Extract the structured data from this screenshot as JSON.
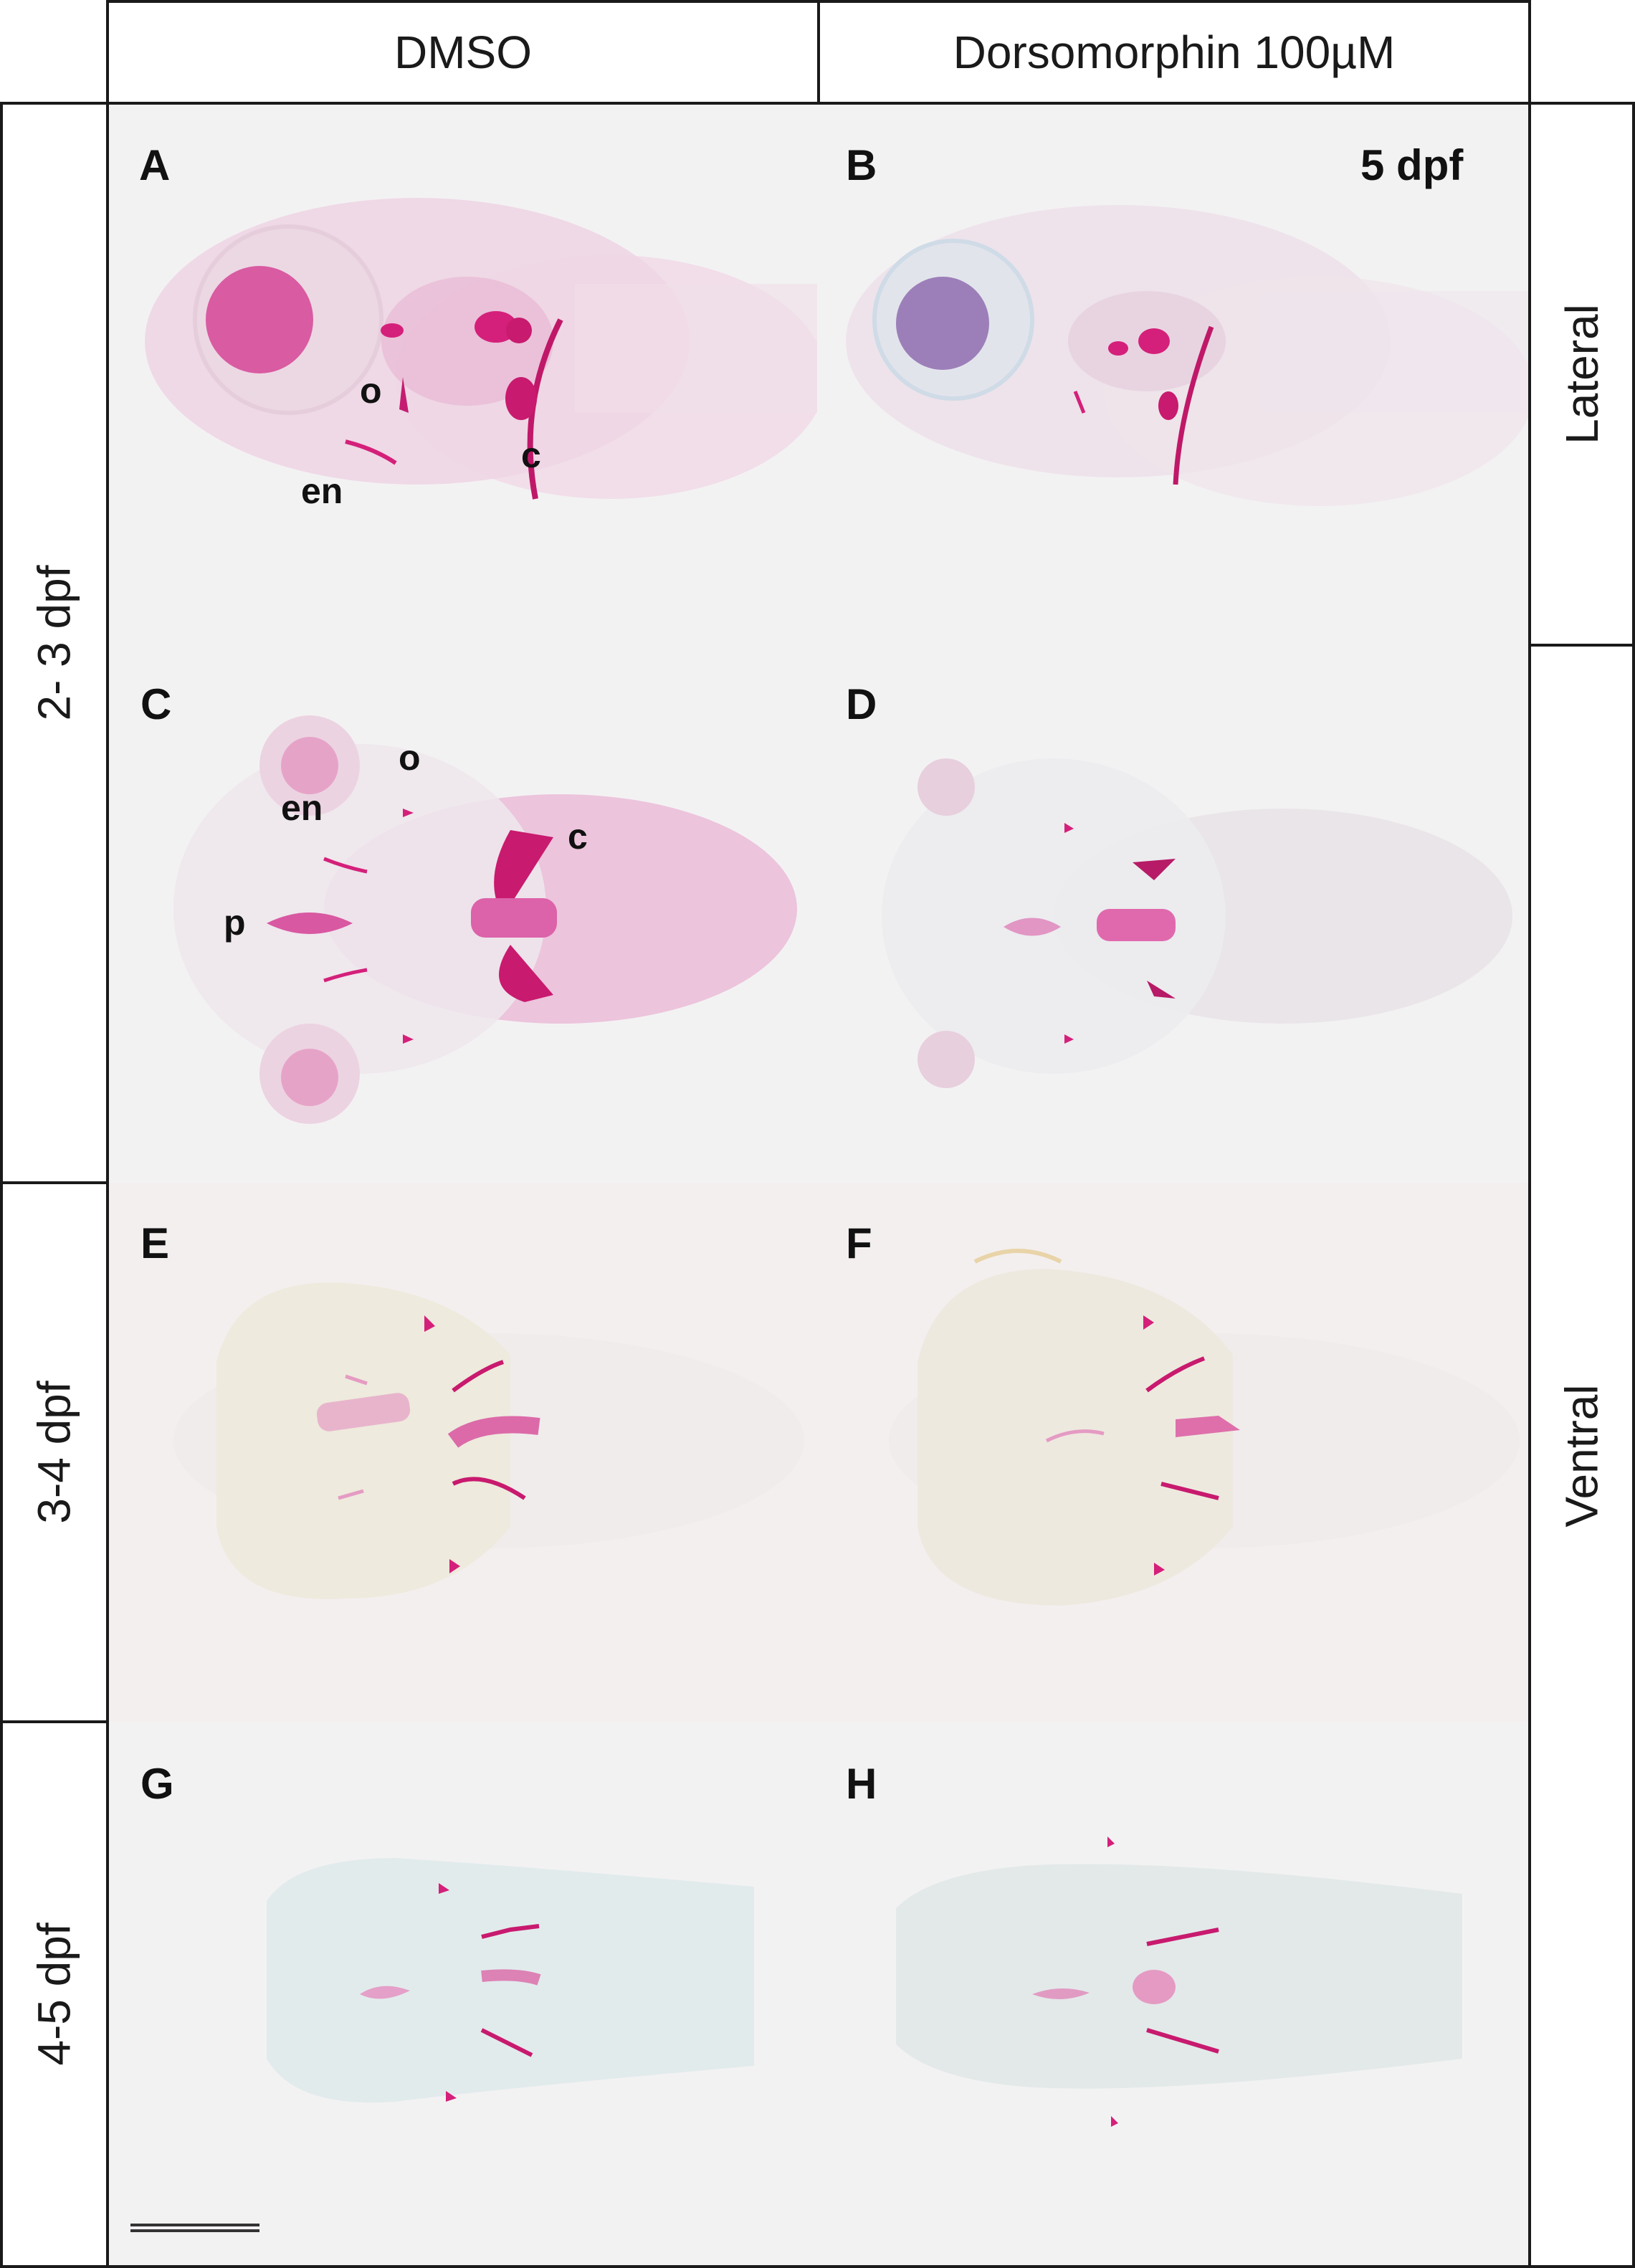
{
  "columns": [
    "DMSO",
    "Dorsomorphin 100µM"
  ],
  "rows": [
    "2- 3 dpf",
    "3-4 dpf",
    "4-5 dpf"
  ],
  "views": [
    "Lateral",
    "Ventral"
  ],
  "stage_label": "5 dpf",
  "panels": {
    "A": {
      "letter": "A"
    },
    "B": {
      "letter": "B"
    },
    "C": {
      "letter": "C"
    },
    "D": {
      "letter": "D"
    },
    "E": {
      "letter": "E"
    },
    "F": {
      "letter": "F"
    },
    "G": {
      "letter": "G"
    },
    "H": {
      "letter": "H"
    }
  },
  "annotations": {
    "A": {
      "o": "o",
      "c": "c",
      "en": "en"
    },
    "C": {
      "o": "o",
      "en": "en",
      "c": "c",
      "p": "p"
    }
  },
  "colors": {
    "stain_pink": "#d4207a",
    "tissue_pink": "#e9b3d2",
    "background": "#f4f3f4",
    "blue_tint": "#b9d4dc"
  }
}
